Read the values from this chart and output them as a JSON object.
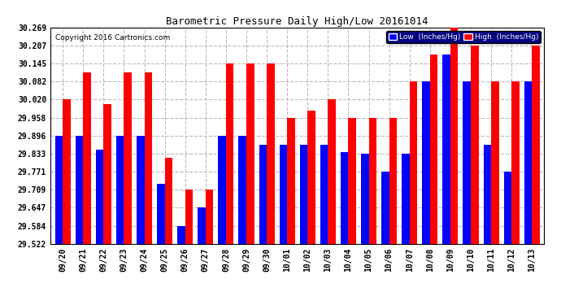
{
  "title": "Barometric Pressure Daily High/Low 20161014",
  "copyright": "Copyright 2016 Cartronics.com",
  "legend_low": "Low  (Inches/Hg)",
  "legend_high": "High  (Inches/Hg)",
  "dates": [
    "09/20",
    "09/21",
    "09/22",
    "09/23",
    "09/24",
    "09/25",
    "09/26",
    "09/27",
    "09/28",
    "09/29",
    "09/30",
    "10/01",
    "10/02",
    "10/03",
    "10/04",
    "10/05",
    "10/06",
    "10/07",
    "10/08",
    "10/09",
    "10/10",
    "10/11",
    "10/12",
    "10/13"
  ],
  "low": [
    29.896,
    29.896,
    29.847,
    29.896,
    29.896,
    29.73,
    29.584,
    29.647,
    29.896,
    29.896,
    29.864,
    29.864,
    29.864,
    29.864,
    29.84,
    29.833,
    29.771,
    29.833,
    30.082,
    30.176,
    30.082,
    29.864,
    29.771,
    30.082
  ],
  "high": [
    30.02,
    30.113,
    30.005,
    30.113,
    30.113,
    29.82,
    29.709,
    29.709,
    30.145,
    30.145,
    30.145,
    29.958,
    29.983,
    30.02,
    29.958,
    29.958,
    29.958,
    30.082,
    30.176,
    30.269,
    30.207,
    30.082,
    30.082,
    30.207
  ],
  "ylim_min": 29.522,
  "ylim_max": 30.269,
  "yticks": [
    29.522,
    29.584,
    29.647,
    29.709,
    29.771,
    29.833,
    29.896,
    29.958,
    30.02,
    30.082,
    30.145,
    30.207,
    30.269
  ],
  "color_low": "#0000FF",
  "color_high": "#FF0000",
  "bg_color": "#FFFFFF",
  "grid_color": "#BBBBBB",
  "bar_width": 0.38,
  "title_fontsize": 9,
  "tick_fontsize": 7,
  "copyright_fontsize": 6.5
}
